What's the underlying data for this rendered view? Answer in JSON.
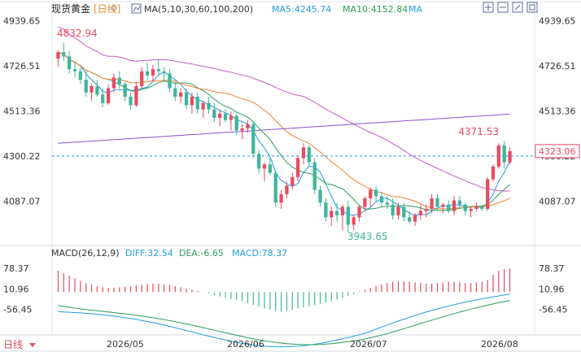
{
  "header": {
    "title": "现货黄金",
    "period": "[日线]",
    "ma_label": "MA(5,10,30,60,100,200)",
    "ma5_label": "MA5:4245.74",
    "ma10_label": "MA10:4152.84",
    "ma_more_label": "MA"
  },
  "toolbar_icons": [
    "ma-settings-icon",
    "add-indicator-icon",
    "zoom-icon",
    "compare-icon",
    "fullscreen-icon",
    "settings-icon"
  ],
  "macd_header": {
    "label": "MACD(26,12,9)",
    "diff_label": "DIFF:32.54",
    "dea_label": "DEA:-6.65",
    "macd_label": "MACD:78.37"
  },
  "footer": {
    "period_select": "日线",
    "dates": [
      "2026/05",
      "2026/06",
      "2026/07",
      "2026/08"
    ]
  },
  "chart_data": [
    {
      "type": "candlestick",
      "ylim": [
        3900,
        4960
      ],
      "yticks": [
        4939.65,
        4726.51,
        4513.36,
        4300.22,
        4087.07
      ],
      "current_price_label": "4323.06",
      "annotations": {
        "high_label": "4832.94",
        "recent_high_label": "4371.53",
        "low_label": "3943.65"
      },
      "colors": {
        "up": "#e84a5f",
        "down": "#3fb59a",
        "ma5": "#1f9de0",
        "ma10": "#2a9c5d",
        "ma30": "#ef8230",
        "ma60": "#c85bc7",
        "ma100": "#8a52c9",
        "dashed": "#1b9dd9"
      },
      "candles": [
        [
          4760,
          4800,
          4720,
          4790
        ],
        [
          4790,
          4835,
          4750,
          4770
        ],
        [
          4770,
          4795,
          4690,
          4710
        ],
        [
          4710,
          4740,
          4670,
          4700
        ],
        [
          4700,
          4720,
          4640,
          4660
        ],
        [
          4660,
          4700,
          4580,
          4600
        ],
        [
          4600,
          4640,
          4560,
          4630
        ],
        [
          4630,
          4660,
          4580,
          4590
        ],
        [
          4590,
          4620,
          4530,
          4550
        ],
        [
          4550,
          4640,
          4540,
          4620
        ],
        [
          4620,
          4690,
          4600,
          4670
        ],
        [
          4670,
          4700,
          4620,
          4640
        ],
        [
          4640,
          4650,
          4560,
          4580
        ],
        [
          4580,
          4600,
          4520,
          4540
        ],
        [
          4540,
          4650,
          4530,
          4630
        ],
        [
          4630,
          4720,
          4620,
          4700
        ],
        [
          4700,
          4740,
          4660,
          4680
        ],
        [
          4680,
          4730,
          4650,
          4710
        ],
        [
          4710,
          4760,
          4680,
          4700
        ],
        [
          4700,
          4720,
          4660,
          4690
        ],
        [
          4690,
          4710,
          4600,
          4620
        ],
        [
          4620,
          4650,
          4560,
          4580
        ],
        [
          4580,
          4620,
          4550,
          4600
        ],
        [
          4600,
          4620,
          4520,
          4540
        ],
        [
          4540,
          4600,
          4500,
          4580
        ],
        [
          4580,
          4600,
          4500,
          4520
        ],
        [
          4520,
          4560,
          4480,
          4550
        ],
        [
          4550,
          4580,
          4500,
          4520
        ],
        [
          4520,
          4550,
          4460,
          4480
        ],
        [
          4480,
          4520,
          4440,
          4500
        ],
        [
          4500,
          4520,
          4460,
          4470
        ],
        [
          4470,
          4510,
          4420,
          4490
        ],
        [
          4490,
          4500,
          4400,
          4420
        ],
        [
          4420,
          4450,
          4380,
          4430
        ],
        [
          4430,
          4470,
          4410,
          4450
        ],
        [
          4450,
          4460,
          4290,
          4310
        ],
        [
          4310,
          4330,
          4220,
          4240
        ],
        [
          4240,
          4270,
          4180,
          4260
        ],
        [
          4260,
          4290,
          4210,
          4220
        ],
        [
          4220,
          4230,
          4060,
          4080
        ],
        [
          4080,
          4140,
          4050,
          4120
        ],
        [
          4120,
          4180,
          4100,
          4160
        ],
        [
          4160,
          4220,
          4140,
          4200
        ],
        [
          4200,
          4300,
          4180,
          4290
        ],
        [
          4290,
          4360,
          4260,
          4340
        ],
        [
          4340,
          4350,
          4250,
          4270
        ],
        [
          4270,
          4290,
          4120,
          4140
        ],
        [
          4140,
          4160,
          4060,
          4080
        ],
        [
          4080,
          4100,
          3990,
          4010
        ],
        [
          4010,
          4060,
          3970,
          4040
        ],
        [
          4040,
          4080,
          3990,
          4020
        ],
        [
          4020,
          4070,
          3950,
          4060
        ],
        [
          4060,
          4090,
          3940,
          3975
        ],
        [
          3975,
          4020,
          3950,
          4010
        ],
        [
          4010,
          4070,
          3990,
          4060
        ],
        [
          4060,
          4110,
          4040,
          4100
        ],
        [
          4100,
          4150,
          4060,
          4140
        ],
        [
          4140,
          4160,
          4080,
          4110
        ],
        [
          4110,
          4130,
          4060,
          4080
        ],
        [
          4080,
          4110,
          4050,
          4070
        ],
        [
          4070,
          4100,
          4000,
          4020
        ],
        [
          4020,
          4080,
          4000,
          4060
        ],
        [
          4060,
          4080,
          3990,
          4010
        ],
        [
          4010,
          4040,
          3980,
          3990
        ],
        [
          3990,
          4030,
          3970,
          4020
        ],
        [
          4020,
          4070,
          4000,
          4040
        ],
        [
          4040,
          4070,
          4010,
          4050
        ],
        [
          4050,
          4120,
          4030,
          4100
        ],
        [
          4100,
          4120,
          4040,
          4060
        ],
        [
          4060,
          4080,
          4030,
          4070
        ],
        [
          4070,
          4090,
          4030,
          4040
        ],
        [
          4040,
          4110,
          4020,
          4090
        ],
        [
          4090,
          4110,
          4050,
          4070
        ],
        [
          4070,
          4080,
          4020,
          4040
        ],
        [
          4040,
          4060,
          4010,
          4050
        ],
        [
          4050,
          4080,
          4040,
          4060
        ],
        [
          4060,
          4070,
          4040,
          4050
        ],
        [
          4050,
          4200,
          4040,
          4190
        ],
        [
          4190,
          4260,
          4180,
          4250
        ],
        [
          4250,
          4360,
          4240,
          4350
        ],
        [
          4350,
          4371.53,
          4240,
          4270
        ],
        [
          4270,
          4340,
          4260,
          4323.06
        ]
      ]
    },
    {
      "type": "bar",
      "title": "MACD(26,12,9)",
      "ylim": [
        -130,
        100
      ],
      "yticks": [
        78.37,
        10.96,
        -56.45
      ],
      "colors": {
        "positive": "#e84a5f",
        "negative": "#3fb59a",
        "diff": "#1f9de0",
        "dea": "#2a9c5d"
      },
      "histogram": [
        70,
        62,
        54,
        46,
        38,
        30,
        24,
        20,
        16,
        14,
        14,
        16,
        18,
        20,
        22,
        24,
        26,
        28,
        28,
        26,
        24,
        20,
        16,
        12,
        8,
        4,
        0,
        -4,
        -10,
        -14,
        -18,
        -22,
        -26,
        -30,
        -36,
        -42,
        -48,
        -54,
        -58,
        -62,
        -64,
        -62,
        -58,
        -54,
        -50,
        -46,
        -42,
        -38,
        -34,
        -30,
        -24,
        -18,
        -12,
        -6,
        2,
        8,
        14,
        20,
        26,
        30,
        34,
        36,
        36,
        34,
        32,
        30,
        28,
        28,
        30,
        32,
        34,
        34,
        32,
        30,
        30,
        32,
        34,
        40,
        58,
        70,
        76,
        78.37
      ]
    }
  ]
}
